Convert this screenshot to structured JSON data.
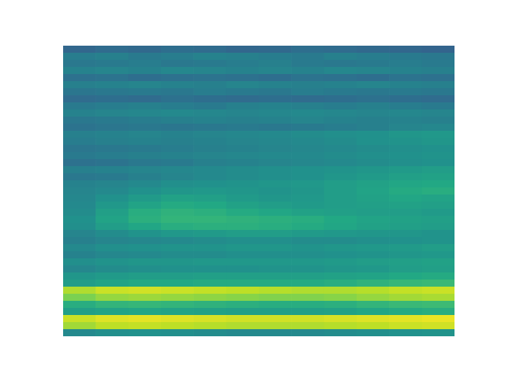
{
  "chart_data": {
    "type": "heatmap",
    "tick_labels": false,
    "color_range": [
      0,
      1
    ],
    "cells": [
      [
        0.33,
        0.35,
        0.34,
        0.36,
        0.35,
        0.33,
        0.34,
        0.36,
        0.35,
        0.34,
        0.33,
        0.32
      ],
      [
        0.42,
        0.43,
        0.41,
        0.42,
        0.44,
        0.43,
        0.42,
        0.41,
        0.43,
        0.42,
        0.41,
        0.4
      ],
      [
        0.4,
        0.41,
        0.42,
        0.4,
        0.41,
        0.42,
        0.43,
        0.41,
        0.4,
        0.41,
        0.42,
        0.41
      ],
      [
        0.44,
        0.45,
        0.44,
        0.46,
        0.45,
        0.44,
        0.45,
        0.44,
        0.46,
        0.45,
        0.44,
        0.43
      ],
      [
        0.37,
        0.38,
        0.36,
        0.37,
        0.38,
        0.37,
        0.36,
        0.38,
        0.37,
        0.36,
        0.38,
        0.37
      ],
      [
        0.43,
        0.44,
        0.45,
        0.44,
        0.43,
        0.45,
        0.44,
        0.43,
        0.44,
        0.45,
        0.44,
        0.43
      ],
      [
        0.39,
        0.4,
        0.41,
        0.4,
        0.42,
        0.41,
        0.4,
        0.42,
        0.41,
        0.4,
        0.41,
        0.4
      ],
      [
        0.35,
        0.36,
        0.35,
        0.37,
        0.36,
        0.35,
        0.36,
        0.35,
        0.36,
        0.37,
        0.36,
        0.35
      ],
      [
        0.41,
        0.42,
        0.43,
        0.42,
        0.41,
        0.43,
        0.44,
        0.43,
        0.42,
        0.43,
        0.42,
        0.41
      ],
      [
        0.44,
        0.45,
        0.46,
        0.47,
        0.46,
        0.45,
        0.46,
        0.47,
        0.46,
        0.45,
        0.46,
        0.45
      ],
      [
        0.4,
        0.41,
        0.42,
        0.43,
        0.44,
        0.43,
        0.44,
        0.45,
        0.44,
        0.43,
        0.44,
        0.43
      ],
      [
        0.38,
        0.39,
        0.4,
        0.39,
        0.4,
        0.41,
        0.4,
        0.41,
        0.42,
        0.43,
        0.45,
        0.46
      ],
      [
        0.43,
        0.44,
        0.45,
        0.44,
        0.45,
        0.46,
        0.47,
        0.48,
        0.49,
        0.5,
        0.52,
        0.53
      ],
      [
        0.42,
        0.43,
        0.44,
        0.43,
        0.44,
        0.45,
        0.46,
        0.47,
        0.48,
        0.5,
        0.51,
        0.52
      ],
      [
        0.39,
        0.4,
        0.41,
        0.42,
        0.43,
        0.44,
        0.45,
        0.46,
        0.47,
        0.48,
        0.49,
        0.5
      ],
      [
        0.41,
        0.42,
        0.43,
        0.44,
        0.45,
        0.46,
        0.47,
        0.47,
        0.48,
        0.49,
        0.5,
        0.51
      ],
      [
        0.37,
        0.38,
        0.4,
        0.41,
        0.43,
        0.44,
        0.45,
        0.46,
        0.47,
        0.48,
        0.49,
        0.5
      ],
      [
        0.43,
        0.44,
        0.45,
        0.46,
        0.47,
        0.48,
        0.49,
        0.5,
        0.51,
        0.52,
        0.54,
        0.55
      ],
      [
        0.4,
        0.41,
        0.43,
        0.45,
        0.47,
        0.48,
        0.49,
        0.5,
        0.52,
        0.54,
        0.56,
        0.57
      ],
      [
        0.44,
        0.45,
        0.47,
        0.49,
        0.5,
        0.51,
        0.52,
        0.53,
        0.55,
        0.57,
        0.59,
        0.6
      ],
      [
        0.45,
        0.47,
        0.5,
        0.52,
        0.53,
        0.52,
        0.51,
        0.52,
        0.55,
        0.58,
        0.61,
        0.62
      ],
      [
        0.46,
        0.5,
        0.54,
        0.57,
        0.56,
        0.54,
        0.52,
        0.53,
        0.55,
        0.57,
        0.59,
        0.58
      ],
      [
        0.47,
        0.53,
        0.58,
        0.61,
        0.6,
        0.57,
        0.55,
        0.54,
        0.55,
        0.56,
        0.57,
        0.56
      ],
      [
        0.48,
        0.56,
        0.62,
        0.64,
        0.63,
        0.61,
        0.59,
        0.57,
        0.56,
        0.55,
        0.55,
        0.54
      ],
      [
        0.5,
        0.58,
        0.63,
        0.65,
        0.65,
        0.64,
        0.63,
        0.62,
        0.6,
        0.58,
        0.57,
        0.56
      ],
      [
        0.49,
        0.55,
        0.59,
        0.62,
        0.63,
        0.63,
        0.62,
        0.61,
        0.59,
        0.57,
        0.56,
        0.55
      ],
      [
        0.45,
        0.48,
        0.51,
        0.53,
        0.54,
        0.55,
        0.55,
        0.54,
        0.53,
        0.52,
        0.52,
        0.51
      ],
      [
        0.43,
        0.45,
        0.46,
        0.47,
        0.48,
        0.49,
        0.49,
        0.48,
        0.48,
        0.49,
        0.5,
        0.51
      ],
      [
        0.47,
        0.49,
        0.5,
        0.51,
        0.51,
        0.52,
        0.52,
        0.51,
        0.52,
        0.53,
        0.54,
        0.55
      ],
      [
        0.44,
        0.46,
        0.47,
        0.48,
        0.48,
        0.49,
        0.49,
        0.49,
        0.5,
        0.51,
        0.52,
        0.53
      ],
      [
        0.49,
        0.51,
        0.52,
        0.52,
        0.53,
        0.53,
        0.53,
        0.53,
        0.54,
        0.55,
        0.56,
        0.57
      ],
      [
        0.46,
        0.48,
        0.49,
        0.5,
        0.5,
        0.5,
        0.51,
        0.51,
        0.52,
        0.53,
        0.55,
        0.56
      ],
      [
        0.52,
        0.54,
        0.55,
        0.55,
        0.56,
        0.56,
        0.56,
        0.56,
        0.57,
        0.58,
        0.6,
        0.61
      ],
      [
        0.55,
        0.58,
        0.6,
        0.6,
        0.61,
        0.61,
        0.61,
        0.61,
        0.62,
        0.64,
        0.66,
        0.67
      ],
      [
        0.88,
        0.92,
        0.93,
        0.92,
        0.91,
        0.9,
        0.89,
        0.88,
        0.88,
        0.89,
        0.91,
        0.92
      ],
      [
        0.8,
        0.84,
        0.85,
        0.84,
        0.83,
        0.82,
        0.81,
        0.81,
        0.82,
        0.84,
        0.86,
        0.87
      ],
      [
        0.62,
        0.65,
        0.66,
        0.65,
        0.64,
        0.63,
        0.62,
        0.62,
        0.63,
        0.65,
        0.67,
        0.68
      ],
      [
        0.56,
        0.58,
        0.59,
        0.58,
        0.57,
        0.56,
        0.56,
        0.56,
        0.57,
        0.59,
        0.61,
        0.62
      ],
      [
        0.92,
        0.95,
        0.96,
        0.95,
        0.94,
        0.93,
        0.93,
        0.93,
        0.94,
        0.95,
        0.96,
        0.97
      ],
      [
        0.86,
        0.9,
        0.91,
        0.9,
        0.89,
        0.88,
        0.88,
        0.88,
        0.89,
        0.9,
        0.92,
        0.93
      ],
      [
        0.47,
        0.49,
        0.5,
        0.49,
        0.48,
        0.47,
        0.47,
        0.47,
        0.48,
        0.49,
        0.5,
        0.51
      ]
    ]
  }
}
